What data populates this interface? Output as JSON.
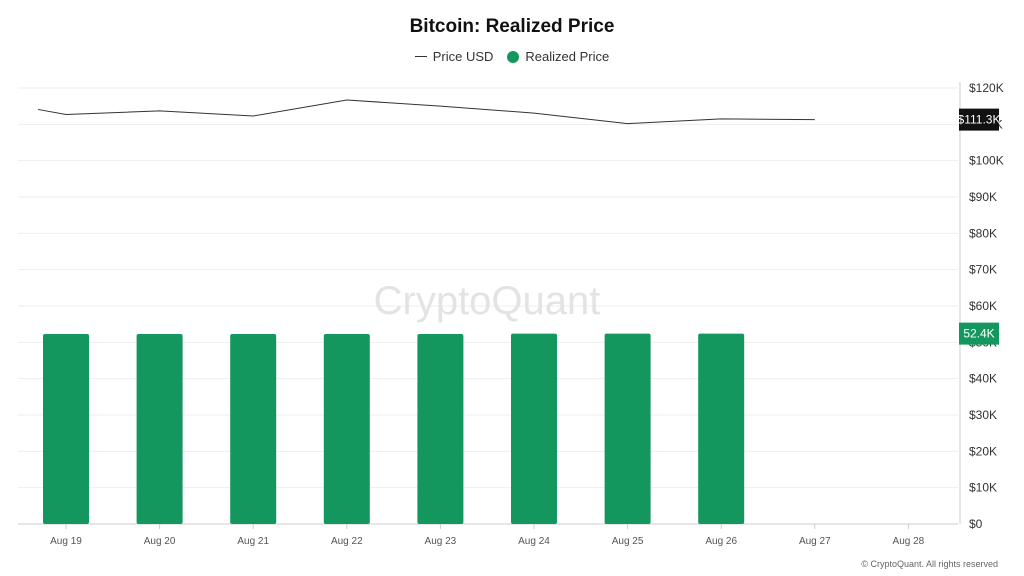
{
  "chart_data": {
    "type": "bar",
    "title": "Bitcoin: Realized Price",
    "watermark": "CryptoQuant",
    "copyright": "© CryptoQuant. All rights reserved",
    "categories": [
      "Aug 19",
      "Aug 20",
      "Aug 21",
      "Aug 22",
      "Aug 23",
      "Aug 24",
      "Aug 25",
      "Aug 26",
      "Aug 27",
      "Aug 28"
    ],
    "series": [
      {
        "name": "Price USD",
        "kind": "line",
        "color": "#333333",
        "x": [
          18.7,
          19.0,
          20.0,
          21.0,
          22.0,
          23.0,
          24.0,
          25.0,
          26.0,
          27.0
        ],
        "values": [
          114100,
          112700,
          113700,
          112300,
          116700,
          115000,
          113100,
          110200,
          111500,
          111300
        ]
      },
      {
        "name": "Realized Price",
        "kind": "bar",
        "color": "#14975f",
        "values": [
          52300,
          52300,
          52300,
          52300,
          52300,
          52400,
          52400,
          52400,
          null,
          null
        ]
      }
    ],
    "y_ticks": [
      "$0",
      "$10K",
      "$20K",
      "$30K",
      "$40K",
      "$50K",
      "$60K",
      "$70K",
      "$80K",
      "$90K",
      "$100K",
      "$110K",
      "$120K"
    ],
    "ylim": [
      0,
      120000
    ],
    "current_labels": [
      {
        "text": "$111.3K",
        "value": 111300,
        "color": "#111111"
      },
      {
        "text": "52.4K",
        "value": 52400,
        "color": "#14975f"
      }
    ],
    "grid": true,
    "legend_position": "top-center"
  }
}
